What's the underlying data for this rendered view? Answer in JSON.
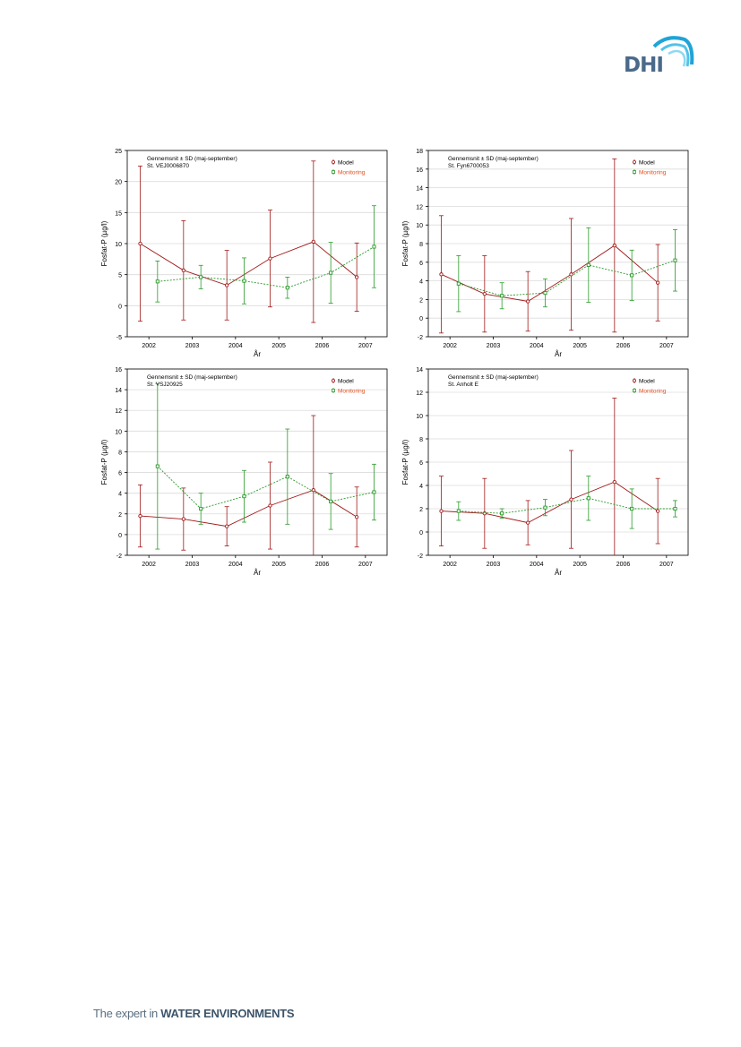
{
  "logo": {
    "text": "DHI"
  },
  "footer": {
    "prefix": "The expert in ",
    "emphasis": "WATER ENVIRONMENTS"
  },
  "colors": {
    "model": "#a01818",
    "monitoring": "#2a9a2a",
    "monitoring_label": "#e05020"
  },
  "chart_data": [
    {
      "type": "line",
      "title": "Gennemsnit ± SD (maj-september)",
      "subtitle": "St. VEJ0006870",
      "xlabel": "År",
      "ylabel": "Fosfat-P (µg/l)",
      "categories": [
        "2002",
        "2003",
        "2004",
        "2005",
        "2006",
        "2007"
      ],
      "ylim": [
        -5,
        25
      ],
      "yticks": [
        -5,
        0,
        5,
        10,
        15,
        20,
        25
      ],
      "legend": "top-right",
      "series": [
        {
          "name": "Model",
          "values": [
            10.0,
            5.7,
            3.3,
            7.6,
            10.3,
            4.6
          ],
          "sd": [
            12.5,
            8.0,
            5.6,
            7.8,
            13.0,
            5.5
          ]
        },
        {
          "name": "Monitoring",
          "values": [
            3.9,
            4.6,
            4.0,
            2.9,
            5.3,
            9.5
          ],
          "sd": [
            3.3,
            1.9,
            3.7,
            1.7,
            4.9,
            6.6
          ]
        }
      ]
    },
    {
      "type": "line",
      "title": "Gennemsnit ± SD (maj-september)",
      "subtitle": "St. Fyn6700053",
      "xlabel": "År",
      "ylabel": "Fosfat-P (µg/l)",
      "categories": [
        "2002",
        "2003",
        "2004",
        "2005",
        "2006",
        "2007"
      ],
      "ylim": [
        -2,
        18
      ],
      "yticks": [
        -2,
        0,
        2,
        4,
        6,
        8,
        10,
        12,
        14,
        16,
        18
      ],
      "legend": "top-right",
      "series": [
        {
          "name": "Model",
          "values": [
            4.7,
            2.6,
            1.8,
            4.7,
            7.8,
            3.8
          ],
          "sd": [
            6.3,
            4.1,
            3.2,
            6.0,
            9.3,
            4.1
          ]
        },
        {
          "name": "Monitoring",
          "values": [
            3.7,
            2.4,
            2.7,
            5.7,
            4.6,
            6.2
          ],
          "sd": [
            3.0,
            1.4,
            1.5,
            4.0,
            2.7,
            3.3
          ]
        }
      ]
    },
    {
      "type": "line",
      "title": "Gennemsnit ± SD (maj-september)",
      "subtitle": "St. VSJ20925",
      "xlabel": "År",
      "ylabel": "Fosfat-P (µg/l)",
      "categories": [
        "2002",
        "2003",
        "2004",
        "2005",
        "2006",
        "2007"
      ],
      "ylim": [
        -2,
        16
      ],
      "yticks": [
        -2,
        0,
        2,
        4,
        6,
        8,
        10,
        12,
        14,
        16
      ],
      "legend": "top-right",
      "series": [
        {
          "name": "Model",
          "values": [
            1.8,
            1.5,
            0.8,
            2.8,
            4.3,
            1.7
          ],
          "sd": [
            3.0,
            3.0,
            1.9,
            4.2,
            7.2,
            2.9
          ]
        },
        {
          "name": "Monitoring",
          "values": [
            6.6,
            2.5,
            3.7,
            5.6,
            3.2,
            4.1
          ],
          "sd": [
            8.0,
            1.5,
            2.5,
            4.6,
            2.7,
            2.7
          ]
        }
      ]
    },
    {
      "type": "line",
      "title": "Gennemsnit ± SD (maj-september)",
      "subtitle": "St. Anholt E",
      "xlabel": "År",
      "ylabel": "Fosfat-P (µg/l)",
      "categories": [
        "2002",
        "2003",
        "2004",
        "2005",
        "2006",
        "2007"
      ],
      "ylim": [
        -2,
        14
      ],
      "yticks": [
        -2,
        0,
        2,
        4,
        6,
        8,
        10,
        12,
        14
      ],
      "legend": "top-right",
      "series": [
        {
          "name": "Model",
          "values": [
            1.8,
            1.6,
            0.8,
            2.8,
            4.3,
            1.8
          ],
          "sd": [
            3.0,
            3.0,
            1.9,
            4.2,
            7.2,
            2.8
          ]
        },
        {
          "name": "Monitoring",
          "values": [
            1.8,
            1.6,
            2.1,
            2.9,
            2.0,
            2.0
          ],
          "sd": [
            0.8,
            0.4,
            0.7,
            1.9,
            1.7,
            0.7
          ]
        }
      ]
    }
  ]
}
